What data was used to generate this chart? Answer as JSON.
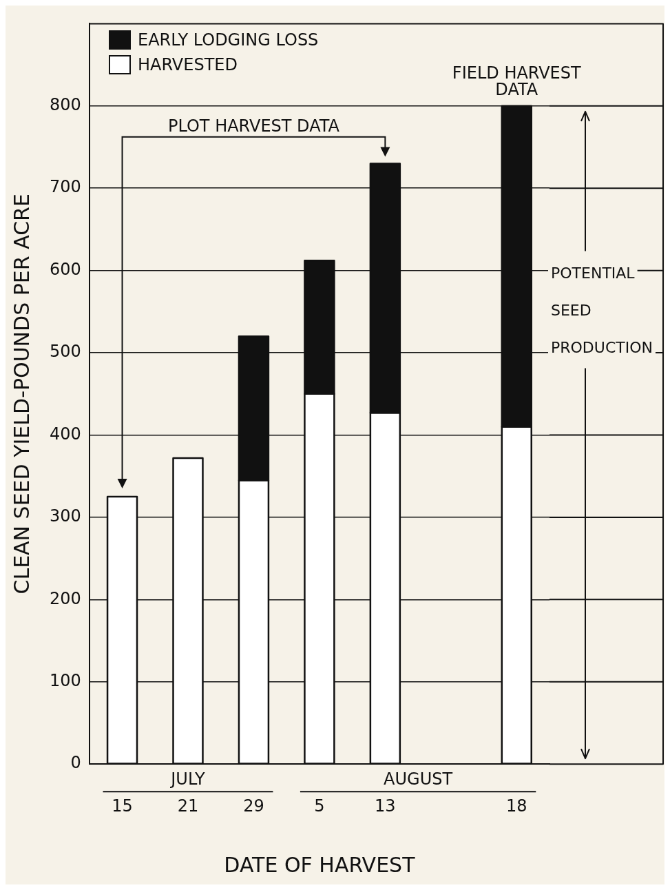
{
  "chart_data": {
    "type": "bar",
    "stacked": true,
    "xlabel": "DATE OF HARVEST",
    "ylabel": "CLEAN SEED YIELD-POUNDS PER ACRE",
    "categories": [
      "15",
      "21",
      "29",
      "5",
      "13",
      null,
      "18"
    ],
    "series": [
      {
        "name": "HARVESTED",
        "color": "#ffffff",
        "values": [
          325,
          372,
          345,
          450,
          427,
          null,
          410
        ]
      },
      {
        "name": "EARLY LODGING LOSS",
        "color": "#111111",
        "values": [
          0,
          0,
          175,
          162,
          303,
          null,
          390
        ]
      }
    ],
    "ylim": [
      0,
      900
    ],
    "yticks": [
      0,
      100,
      200,
      300,
      400,
      500,
      600,
      700,
      800
    ],
    "grid": "y",
    "legend": "top left",
    "annotations": [
      "PLOT HARVEST DATA",
      "FIELD HARVEST\nDATA",
      "POTENTIAL\nSEED\nPRODUCTION",
      "JULY",
      "AUGUST"
    ]
  }
}
